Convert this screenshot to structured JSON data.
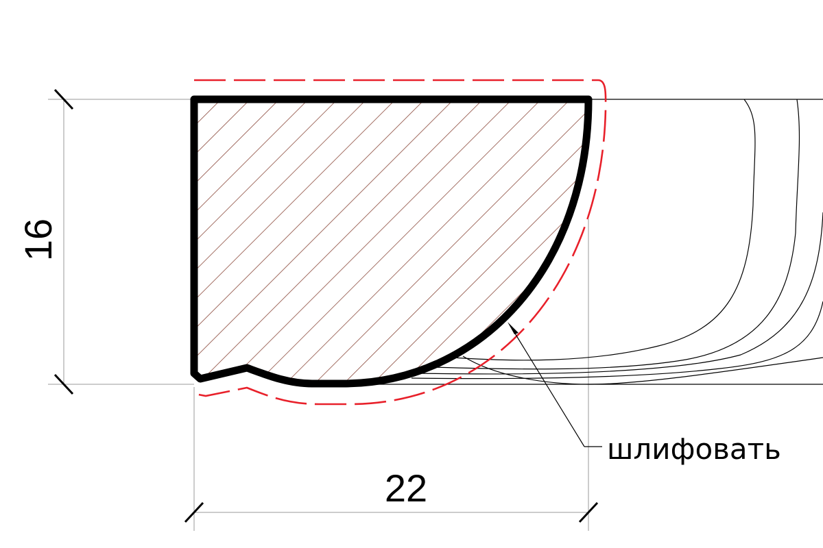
{
  "dimensions": {
    "height": "16",
    "width": "22"
  },
  "annotation": {
    "label": "шлифовать"
  },
  "colors": {
    "outline": "#000000",
    "hatch": "#8b4a3c",
    "allowance": "#e8202a",
    "thin_line": "#000000",
    "extension": "#9a9a9a"
  }
}
